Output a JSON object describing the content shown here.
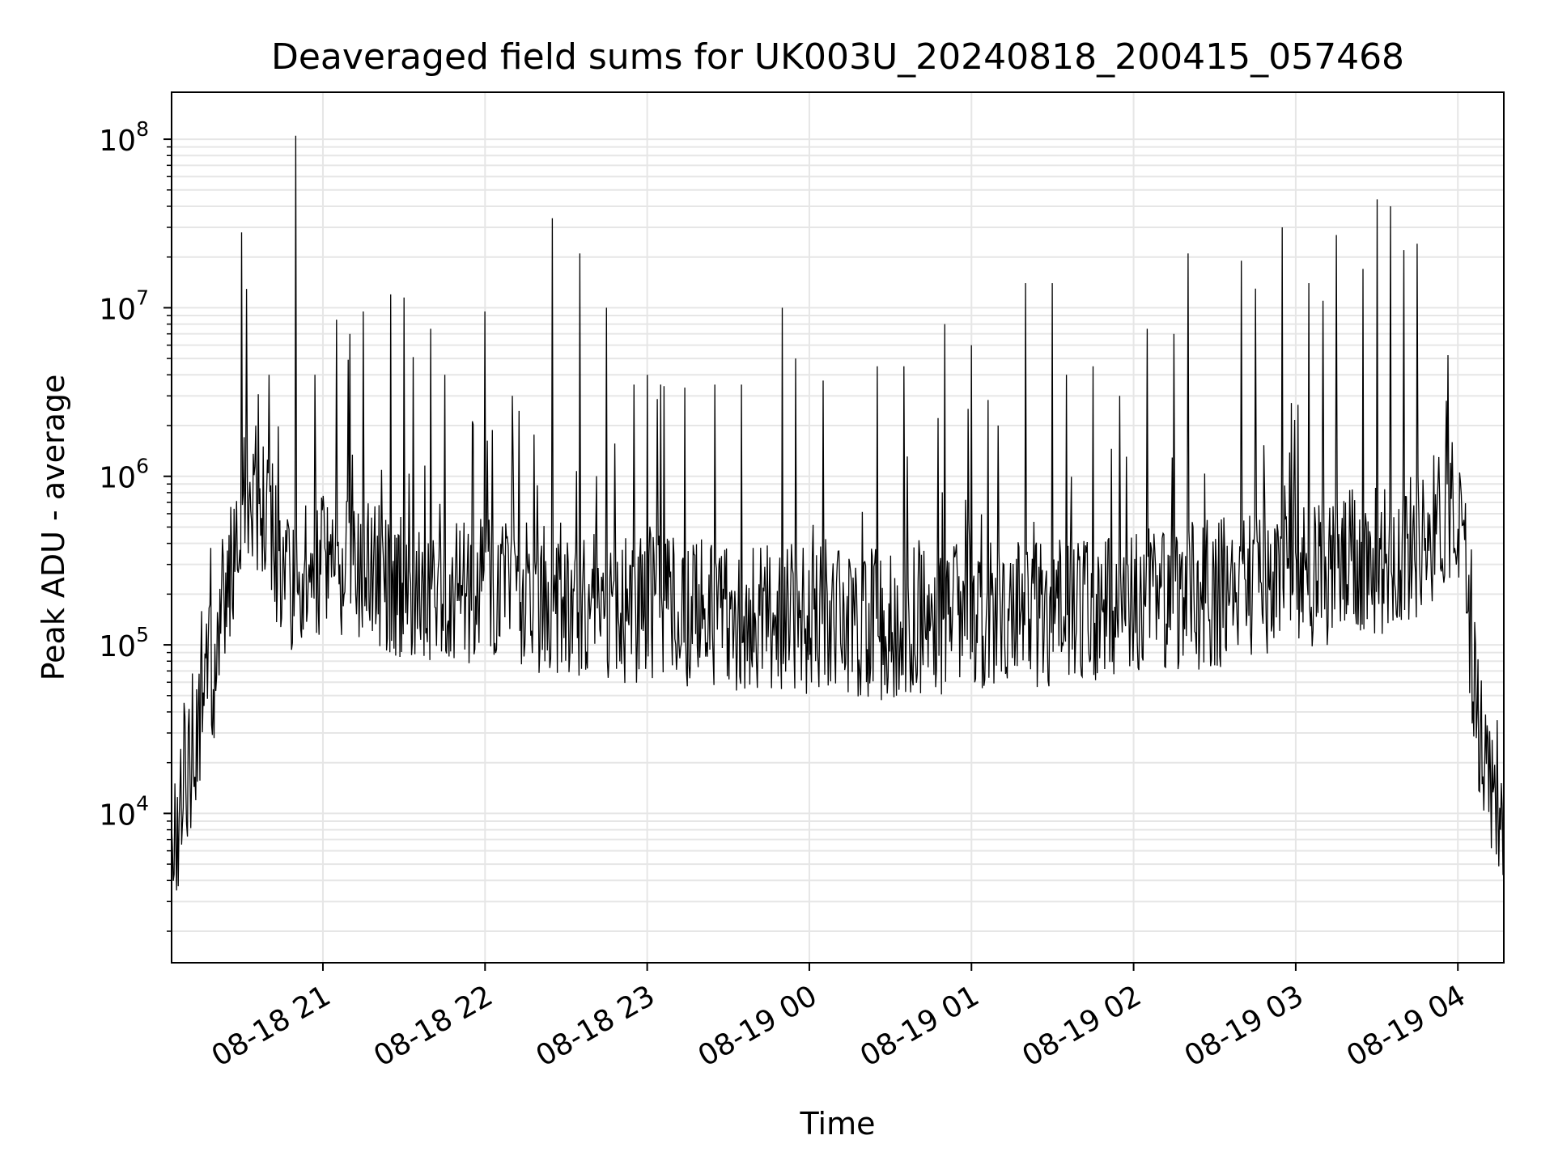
{
  "chart_data": {
    "type": "line",
    "title": "Deaveraged field sums for UK003U_20240818_200415_057468",
    "xlabel": "Time",
    "ylabel": "Peak ADU - average",
    "yscale": "log",
    "ylim": [
      1300,
      190000000
    ],
    "xlim": [
      "2024-08-18 20:04",
      "2024-08-19 04:17"
    ],
    "grid": true,
    "line_color": "#000000",
    "grid_color": "#e6e6e6",
    "x_ticks": [
      "2024-08-18 21:00",
      "2024-08-18 22:00",
      "2024-08-18 23:00",
      "2024-08-19 00:00",
      "2024-08-19 01:00",
      "2024-08-19 02:00",
      "2024-08-19 03:00",
      "2024-08-19 04:00"
    ],
    "x_tick_labels": [
      "08-18 21",
      "08-18 22",
      "08-18 23",
      "08-19 00",
      "08-19 01",
      "08-19 02",
      "08-19 03",
      "08-19 04"
    ],
    "y_ticks": [
      {
        "value": 10000,
        "base": "10",
        "exp": "4"
      },
      {
        "value": 100000,
        "base": "10",
        "exp": "5"
      },
      {
        "value": 1000000,
        "base": "10",
        "exp": "6"
      },
      {
        "value": 10000000,
        "base": "10",
        "exp": "7"
      },
      {
        "value": 100000000,
        "base": "10",
        "exp": "8"
      }
    ],
    "baseline": {
      "x": [
        "2024-08-18 20:04",
        "2024-08-18 20:08",
        "2024-08-18 20:13",
        "2024-08-18 20:20",
        "2024-08-18 20:25",
        "2024-08-18 20:30",
        "2024-08-18 20:35",
        "2024-08-18 20:40",
        "2024-08-18 20:45",
        "2024-08-18 20:50",
        "2024-08-18 20:55",
        "2024-08-18 21:00",
        "2024-08-18 21:30",
        "2024-08-18 22:00",
        "2024-08-18 22:30",
        "2024-08-18 23:00",
        "2024-08-18 23:30",
        "2024-08-19 00:00",
        "2024-08-19 00:30",
        "2024-08-19 01:00",
        "2024-08-19 01:30",
        "2024-08-19 02:00",
        "2024-08-19 02:30",
        "2024-08-19 03:00",
        "2024-08-19 03:30",
        "2024-08-19 03:45",
        "2024-08-19 03:55",
        "2024-08-19 04:00",
        "2024-08-19 04:03",
        "2024-08-19 04:05",
        "2024-08-19 04:07",
        "2024-08-19 04:10",
        "2024-08-19 04:14",
        "2024-08-19 04:17"
      ],
      "y": [
        5000,
        15000,
        30000,
        80000,
        250000,
        650000,
        800000,
        500000,
        280000,
        250000,
        270000,
        280000,
        230000,
        200000,
        180000,
        160000,
        150000,
        140000,
        130000,
        150000,
        160000,
        170000,
        200000,
        250000,
        320000,
        380000,
        600000,
        500000,
        300000,
        100000,
        40000,
        20000,
        15000,
        10000
      ],
      "noise_decades": 0.45,
      "samples": 1600
    },
    "spikes": {
      "x": [
        "2024-08-18 20:30",
        "2024-08-18 20:40",
        "2024-08-18 20:50",
        "2024-08-18 20:57",
        "2024-08-18 21:05",
        "2024-08-18 21:10",
        "2024-08-18 21:15",
        "2024-08-18 21:25",
        "2024-08-18 21:30",
        "2024-08-18 21:40",
        "2024-08-18 21:45",
        "2024-08-18 22:00",
        "2024-08-18 22:10",
        "2024-08-18 22:25",
        "2024-08-18 22:35",
        "2024-08-18 22:45",
        "2024-08-18 22:55",
        "2024-08-18 23:00",
        "2024-08-18 23:05",
        "2024-08-18 23:25",
        "2024-08-18 23:35",
        "2024-08-18 23:50",
        "2024-08-18 23:55",
        "2024-08-19 00:05",
        "2024-08-19 00:25",
        "2024-08-19 00:35",
        "2024-08-19 00:50",
        "2024-08-19 01:00",
        "2024-08-19 01:10",
        "2024-08-19 01:20",
        "2024-08-19 01:30",
        "2024-08-19 01:35",
        "2024-08-19 01:45",
        "2024-08-19 01:55",
        "2024-08-19 02:05",
        "2024-08-19 02:15",
        "2024-08-19 02:20",
        "2024-08-19 02:40",
        "2024-08-19 02:45",
        "2024-08-19 02:55",
        "2024-08-19 03:05",
        "2024-08-19 03:10",
        "2024-08-19 03:15",
        "2024-08-19 03:25",
        "2024-08-19 03:30",
        "2024-08-19 03:35",
        "2024-08-19 03:40",
        "2024-08-19 03:45"
      ],
      "y": [
        28000000,
        4000000,
        105000000,
        4000000,
        8500000,
        7000000,
        9500000,
        12000000,
        11500000,
        7500000,
        4000000,
        9500000,
        3000000,
        34000000,
        21000000,
        10000000,
        3500000,
        4000000,
        3500000,
        3500000,
        3500000,
        10000000,
        5000000,
        3700000,
        4500000,
        4500000,
        8000000,
        6000000,
        2000000,
        14000000,
        14000000,
        4000000,
        4500000,
        3000000,
        7500000,
        7000000,
        21000000,
        19000000,
        13000000,
        30000000,
        14000000,
        11000000,
        27000000,
        17000000,
        44000000,
        40000000,
        22000000,
        24000000
      ]
    }
  }
}
